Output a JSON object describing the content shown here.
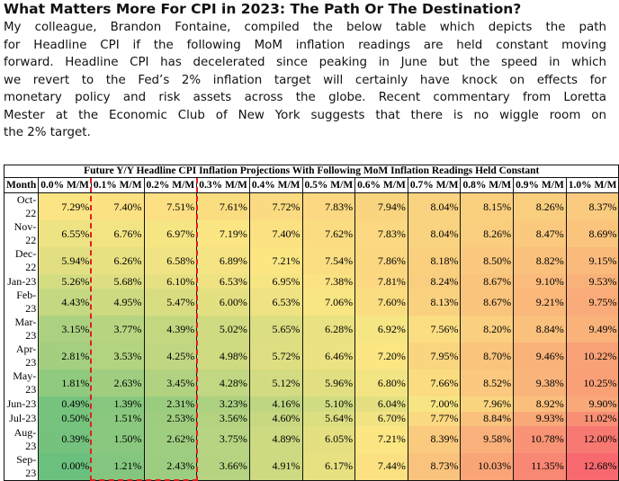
{
  "title": "What Matters More For CPI in 2023: The Path Or The Destination?",
  "paragraph_lines": [
    "My colleague, Brandon Fontaine, compiled the below table which depicts the path",
    "for Headline CPI if the following MoM inflation readings are held constant moving",
    "forward. Headline CPI has decelerated since peaking in June but the speed in which",
    "we revert to the Fed’s 2% inflation target will certainly have knock on effects for",
    "monetary policy and risk assets across the globe. Recent commentary from Loretta",
    "Mester at the Economic Club of New York suggests that there is no wiggle room on",
    "the 2% target."
  ],
  "table": {
    "title": "Future Y/Y Headline CPI Inflation Projections With Following MoM Inflation Readings Held Constant",
    "columns": [
      "Month",
      "0.0% M/M",
      "0.1% M/M",
      "0.2% M/M",
      "0.3% M/M",
      "0.4% M/M",
      "0.5% M/M",
      "0.6% M/M",
      "0.7% M/M",
      "0.8% M/M",
      "0.9% M/M",
      "1.0% M/M"
    ],
    "rows": [
      {
        "month": "Oct-22",
        "values": [
          "7.29%",
          "7.40%",
          "7.51%",
          "7.61%",
          "7.72%",
          "7.83%",
          "7.94%",
          "8.04%",
          "8.15%",
          "8.26%",
          "8.37%"
        ]
      },
      {
        "month": "Nov-22",
        "values": [
          "6.55%",
          "6.76%",
          "6.97%",
          "7.19%",
          "7.40%",
          "7.62%",
          "7.83%",
          "8.04%",
          "8.26%",
          "8.47%",
          "8.69%"
        ]
      },
      {
        "month": "Dec-22",
        "values": [
          "5.94%",
          "6.26%",
          "6.58%",
          "6.89%",
          "7.21%",
          "7.54%",
          "7.86%",
          "8.18%",
          "8.50%",
          "8.82%",
          "9.15%"
        ]
      },
      {
        "month": "Jan-23",
        "values": [
          "5.26%",
          "5.68%",
          "6.10%",
          "6.53%",
          "6.95%",
          "7.38%",
          "7.81%",
          "8.24%",
          "8.67%",
          "9.10%",
          "9.53%"
        ]
      },
      {
        "month": "Feb-23",
        "values": [
          "4.43%",
          "4.95%",
          "5.47%",
          "6.00%",
          "6.53%",
          "7.06%",
          "7.60%",
          "8.13%",
          "8.67%",
          "9.21%",
          "9.75%"
        ]
      },
      {
        "month": "Mar-23",
        "values": [
          "3.15%",
          "3.77%",
          "4.39%",
          "5.02%",
          "5.65%",
          "6.28%",
          "6.92%",
          "7.56%",
          "8.20%",
          "8.84%",
          "9.49%"
        ]
      },
      {
        "month": "Apr-23",
        "values": [
          "2.81%",
          "3.53%",
          "4.25%",
          "4.98%",
          "5.72%",
          "6.46%",
          "7.20%",
          "7.95%",
          "8.70%",
          "9.46%",
          "10.22%"
        ]
      },
      {
        "month": "May-23",
        "values": [
          "1.81%",
          "2.63%",
          "3.45%",
          "4.28%",
          "5.12%",
          "5.96%",
          "6.80%",
          "7.66%",
          "8.52%",
          "9.38%",
          "10.25%"
        ]
      },
      {
        "month": "Jun-23",
        "values": [
          "0.49%",
          "1.39%",
          "2.31%",
          "3.23%",
          "4.16%",
          "5.10%",
          "6.04%",
          "7.00%",
          "7.96%",
          "8.92%",
          "9.90%"
        ]
      },
      {
        "month": "Jul-23",
        "values": [
          "0.50%",
          "1.51%",
          "2.53%",
          "3.56%",
          "4.60%",
          "5.64%",
          "6.70%",
          "7.77%",
          "8.84%",
          "9.93%",
          "11.02%"
        ]
      },
      {
        "month": "Aug-23",
        "values": [
          "0.39%",
          "1.50%",
          "2.62%",
          "3.75%",
          "4.89%",
          "6.05%",
          "7.21%",
          "8.39%",
          "9.58%",
          "10.78%",
          "12.00%"
        ]
      },
      {
        "month": "Sep-23",
        "values": [
          "0.00%",
          "1.21%",
          "2.43%",
          "3.66%",
          "4.91%",
          "6.17%",
          "7.44%",
          "8.73%",
          "10.03%",
          "11.35%",
          "12.68%"
        ]
      }
    ],
    "highlighted_columns": [
      "0.1% M/M",
      "0.2% M/M"
    ],
    "colors": {
      "low": "#6cc07e",
      "mid": "#fbe683",
      "high": "#f7696e",
      "highlight_border": "#e02020"
    }
  }
}
